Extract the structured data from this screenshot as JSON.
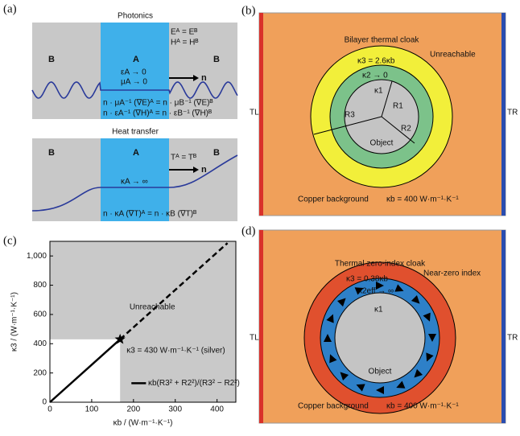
{
  "panel_labels": [
    "(a)",
    "(b)",
    "(c)",
    "(d)"
  ],
  "panel_a": {
    "top": {
      "title": "Photonics",
      "left": "B",
      "middle": "A",
      "right": "B",
      "bc1": "Eᴬ = Eᴮ",
      "bc2": "Hᴬ = Hᴮ",
      "eps": "εA → 0",
      "mu": "μA → 0",
      "normal": "n",
      "eq1": "n · μA⁻¹ (∇E)ᴬ = n · μB⁻¹ (∇E)ᴮ",
      "eq2": "n · εA⁻¹ (∇H)ᴬ = n · εB⁻¹ (∇H)ᴮ"
    },
    "bottom": {
      "title": "Heat transfer",
      "left": "B",
      "middle": "A",
      "right": "B",
      "bc": "Tᴬ = Tᴮ",
      "kappa": "κA → ∞",
      "normal": "n",
      "eq": "n · κA (∇T)ᴬ = n · κB (∇T)ᴮ"
    }
  },
  "panel_b": {
    "title": "Bilayer thermal cloak",
    "k3": "κ3 = 2.6κb",
    "unreachable": "Unreachable",
    "k2": "κ2 → 0",
    "k1": "κ1",
    "r1": "R1",
    "r2": "R2",
    "r3": "R3",
    "object": "Object",
    "tl": "TL",
    "tr": "TR",
    "background": "Copper background",
    "kb": "κb = 400 W·m⁻¹·K⁻¹"
  },
  "panel_d": {
    "title": "Thermal zero-index cloak",
    "k3": "κ3 = 0.38κb",
    "nzi": "Near-zero index",
    "k2": "κ2eff → ∞",
    "k1": "κ1",
    "object": "Object",
    "tl": "TL",
    "tr": "TR",
    "background": "Copper background",
    "kb": "κb = 400 W·m⁻¹·K⁻¹"
  },
  "chart_data": {
    "type": "line",
    "xlabel": "κb / (W·m⁻¹·K⁻¹)",
    "ylabel": "κ3 / (W·m⁻¹·K⁻¹)",
    "xlim": [
      0,
      445
    ],
    "ylim": [
      0,
      1100
    ],
    "xticks": [
      0,
      100,
      200,
      300,
      400
    ],
    "yticks": [
      0,
      200,
      400,
      600,
      800,
      {
        "value": 1000,
        "label": "1,000"
      }
    ],
    "series": [
      {
        "name": "κb(R3² + R2²)/(R3² − R2²)",
        "color": "#000000",
        "dashed": false,
        "x": [
          0,
          168
        ],
        "values": [
          0,
          430
        ]
      },
      {
        "color": "#000000",
        "dashed": true,
        "x": [
          168,
          425
        ],
        "values": [
          430,
          1088
        ]
      }
    ],
    "star": {
      "x": 168,
      "y": 430,
      "label": "κ3 = 430 W·m⁻¹·K⁻¹ (silver)"
    },
    "region_label": "Unreachable"
  }
}
